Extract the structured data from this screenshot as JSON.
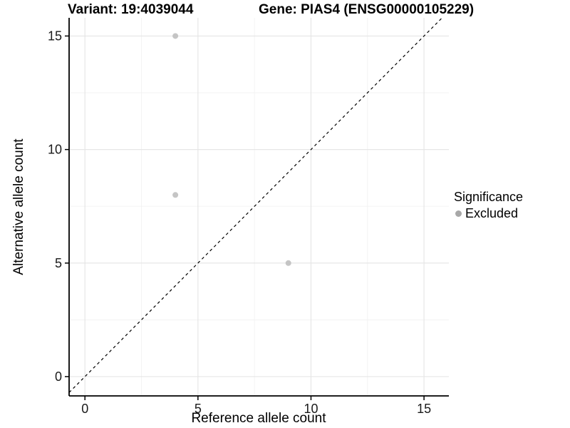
{
  "chart_data": {
    "type": "scatter",
    "titles": {
      "left": "Variant: 19:4039044",
      "right": "Gene: PIAS4 (ENSG00000105229)"
    },
    "xlabel": "Reference allele count",
    "ylabel": "Alternative allele count",
    "x_ticks": [
      0,
      5,
      10,
      15
    ],
    "y_ticks": [
      0,
      5,
      10,
      15
    ],
    "x_minor_ticks": [
      2.5,
      7.5,
      12.5
    ],
    "y_minor_ticks": [
      2.5,
      7.5,
      12.5
    ],
    "xlim": [
      -0.7,
      16.1
    ],
    "ylim": [
      -0.85,
      15.8
    ],
    "grid": true,
    "identity_line": {
      "slope": 1,
      "intercept": 0,
      "style": "dashed",
      "color": "#000000"
    },
    "series": [
      {
        "name": "Excluded",
        "color": "#bfbfbf",
        "points": [
          [
            4,
            15
          ],
          [
            4,
            8
          ],
          [
            9,
            5
          ]
        ]
      }
    ],
    "legend": {
      "title": "Significance",
      "position": "right",
      "items": [
        {
          "label": "Excluded",
          "color": "#a8a8a8"
        }
      ]
    },
    "colors": {
      "background": "#ffffff",
      "axis": "#000000",
      "grid_major": "#e6e6e6",
      "grid_minor": "#f2f2f2",
      "tick_label": "#1a1a1a"
    }
  }
}
